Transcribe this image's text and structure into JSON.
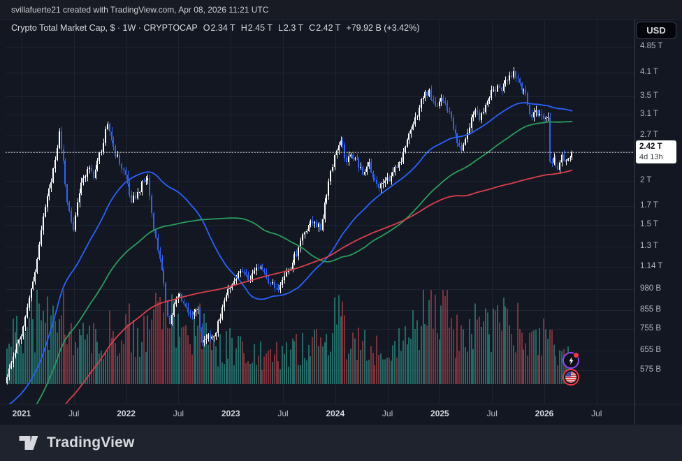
{
  "top_bar": {
    "attribution": "svillafuerte21 created with TradingView.com, Apr 08, 2026 11:21 UTC"
  },
  "header": {
    "title": "Crypto Total Market Cap, $ · 1W · CRYPTOCAP",
    "o_label": "O",
    "o": "2.34 T",
    "h_label": "H",
    "h": "2.45 T",
    "l_label": "L",
    "l": "2.3 T",
    "c_label": "C",
    "c": "2.42 T",
    "change": "+79.92 B (+3.42%)"
  },
  "price_axis": {
    "currency": "USD",
    "labels": [
      {
        "text": "4.85 T",
        "value": 4.85
      },
      {
        "text": "4.1 T",
        "value": 4.1
      },
      {
        "text": "3.5 T",
        "value": 3.5
      },
      {
        "text": "3.1 T",
        "value": 3.1
      },
      {
        "text": "2.7 T",
        "value": 2.7
      },
      {
        "text": "2 T",
        "value": 2.0
      },
      {
        "text": "1.7 T",
        "value": 1.7
      },
      {
        "text": "1.5 T",
        "value": 1.5
      },
      {
        "text": "1.3 T",
        "value": 1.3
      },
      {
        "text": "1.14 T",
        "value": 1.14
      },
      {
        "text": "980 B",
        "value": 0.98
      },
      {
        "text": "855 B",
        "value": 0.855
      },
      {
        "text": "755 B",
        "value": 0.755
      },
      {
        "text": "655 B",
        "value": 0.655
      },
      {
        "text": "575 B",
        "value": 0.575
      }
    ],
    "tag": {
      "price": "2.42 T",
      "countdown": "4d 13h"
    }
  },
  "time_axis": {
    "labels": [
      {
        "text": "2021",
        "major": true
      },
      {
        "text": "Jul",
        "major": false
      },
      {
        "text": "2022",
        "major": true
      },
      {
        "text": "Jul",
        "major": false
      },
      {
        "text": "2023",
        "major": true
      },
      {
        "text": "Jul",
        "major": false
      },
      {
        "text": "2024",
        "major": true
      },
      {
        "text": "Jul",
        "major": false
      },
      {
        "text": "2025",
        "major": true
      },
      {
        "text": "Jul",
        "major": false
      },
      {
        "text": "2026",
        "major": true
      },
      {
        "text": "Jul",
        "major": false
      }
    ]
  },
  "footer": {
    "brand": "TradingView"
  },
  "floating_buttons": {
    "lightning": "lightning-stream-button",
    "flag": "us-flag-button"
  },
  "chart_data": {
    "type": "candlestick",
    "title": "Crypto Total Market Cap",
    "symbol": "CRYPTOCAP",
    "timeframe": "1W",
    "y_scale": "log",
    "ylim_trillions": [
      0.46,
      5.4
    ],
    "grid": true,
    "price_line_value": 2.42,
    "last_bar": {
      "o": 2.34,
      "h": 2.45,
      "l": 2.3,
      "c": 2.42
    },
    "weeks_total": 282,
    "close_anchors_trillions": [
      [
        0,
        0.55
      ],
      [
        3,
        0.63
      ],
      [
        7,
        0.72
      ],
      [
        10,
        0.87
      ],
      [
        14,
        1.1
      ],
      [
        17,
        1.45
      ],
      [
        21,
        1.91
      ],
      [
        24,
        2.3
      ],
      [
        26,
        2.78
      ],
      [
        28,
        2.29
      ],
      [
        30,
        1.74
      ],
      [
        33,
        1.45
      ],
      [
        35,
        1.74
      ],
      [
        38,
        2.04
      ],
      [
        41,
        2.19
      ],
      [
        43,
        2.04
      ],
      [
        45,
        2.29
      ],
      [
        48,
        2.57
      ],
      [
        50,
        2.92
      ],
      [
        53,
        2.51
      ],
      [
        56,
        2.24
      ],
      [
        59,
        2.09
      ],
      [
        62,
        1.74
      ],
      [
        65,
        1.86
      ],
      [
        68,
        2.0
      ],
      [
        70,
        2.04
      ],
      [
        73,
        1.45
      ],
      [
        76,
        1.2
      ],
      [
        79,
        0.91
      ],
      [
        81,
        0.78
      ],
      [
        83,
        0.89
      ],
      [
        86,
        0.95
      ],
      [
        89,
        0.87
      ],
      [
        92,
        0.83
      ],
      [
        95,
        0.86
      ],
      [
        97,
        0.69
      ],
      [
        100,
        0.73
      ],
      [
        103,
        0.72
      ],
      [
        106,
        0.81
      ],
      [
        108,
        0.91
      ],
      [
        111,
        0.99
      ],
      [
        114,
        1.05
      ],
      [
        117,
        1.1
      ],
      [
        120,
        1.04
      ],
      [
        122,
        1.09
      ],
      [
        125,
        1.13
      ],
      [
        128,
        1.1
      ],
      [
        131,
        1.02
      ],
      [
        133,
        0.99
      ],
      [
        136,
        1.01
      ],
      [
        139,
        1.1
      ],
      [
        142,
        1.17
      ],
      [
        145,
        1.29
      ],
      [
        147,
        1.41
      ],
      [
        150,
        1.5
      ],
      [
        153,
        1.53
      ],
      [
        156,
        1.45
      ],
      [
        158,
        1.74
      ],
      [
        161,
        2.14
      ],
      [
        164,
        2.45
      ],
      [
        166,
        2.61
      ],
      [
        169,
        2.27
      ],
      [
        171,
        2.38
      ],
      [
        174,
        2.31
      ],
      [
        177,
        2.09
      ],
      [
        180,
        2.27
      ],
      [
        182,
        2.04
      ],
      [
        185,
        1.91
      ],
      [
        188,
        2.01
      ],
      [
        191,
        2.07
      ],
      [
        194,
        2.19
      ],
      [
        196,
        2.27
      ],
      [
        199,
        2.63
      ],
      [
        202,
        2.91
      ],
      [
        205,
        3.24
      ],
      [
        207,
        3.47
      ],
      [
        210,
        3.66
      ],
      [
        212,
        3.39
      ],
      [
        214,
        3.28
      ],
      [
        216,
        3.47
      ],
      [
        218,
        3.35
      ],
      [
        220,
        3.16
      ],
      [
        222,
        2.82
      ],
      [
        224,
        2.57
      ],
      [
        226,
        2.45
      ],
      [
        229,
        2.75
      ],
      [
        231,
        3.05
      ],
      [
        233,
        3.19
      ],
      [
        235,
        2.99
      ],
      [
        238,
        3.31
      ],
      [
        240,
        3.47
      ],
      [
        242,
        3.66
      ],
      [
        244,
        3.76
      ],
      [
        246,
        3.63
      ],
      [
        248,
        3.89
      ],
      [
        250,
        4.02
      ],
      [
        252,
        4.13
      ],
      [
        254,
        3.94
      ],
      [
        257,
        3.66
      ],
      [
        259,
        3.31
      ],
      [
        261,
        3.05
      ],
      [
        263,
        3.19
      ],
      [
        265,
        3.12
      ],
      [
        267,
        3.02
      ],
      [
        269,
        3.05
      ],
      [
        270,
        2.27
      ],
      [
        272,
        2.34
      ],
      [
        274,
        2.16
      ],
      [
        276,
        2.38
      ],
      [
        278,
        2.29
      ],
      [
        280,
        2.34
      ],
      [
        281,
        2.42
      ]
    ],
    "prehistory": {
      "start_value": 0.55,
      "log_decay_per_week": 0.0035,
      "weeks": 210
    },
    "moving_averages": [
      {
        "name": "SMA 50",
        "period": 50,
        "color": "#2962ff"
      },
      {
        "name": "SMA 100",
        "period": 100,
        "color": "#2a9d5c"
      },
      {
        "name": "SMA 200",
        "period": 200,
        "color": "#d9404b"
      }
    ],
    "volume_profile_anchors": [
      [
        0,
        0.55
      ],
      [
        8,
        0.8
      ],
      [
        16,
        1.0
      ],
      [
        24,
        0.85
      ],
      [
        26,
        1.05
      ],
      [
        32,
        0.7
      ],
      [
        40,
        0.6
      ],
      [
        48,
        0.65
      ],
      [
        52,
        0.75
      ],
      [
        60,
        0.85
      ],
      [
        66,
        0.6
      ],
      [
        73,
        0.95
      ],
      [
        80,
        1.05
      ],
      [
        88,
        0.6
      ],
      [
        97,
        0.85
      ],
      [
        104,
        0.5
      ],
      [
        111,
        0.55
      ],
      [
        120,
        0.45
      ],
      [
        130,
        0.4
      ],
      [
        140,
        0.45
      ],
      [
        150,
        0.55
      ],
      [
        160,
        0.8
      ],
      [
        166,
        0.9
      ],
      [
        172,
        0.6
      ],
      [
        180,
        0.55
      ],
      [
        188,
        0.5
      ],
      [
        196,
        0.6
      ],
      [
        205,
        0.9
      ],
      [
        210,
        1.25
      ],
      [
        212,
        0.8
      ],
      [
        218,
        1.3
      ],
      [
        222,
        0.8
      ],
      [
        226,
        0.7
      ],
      [
        230,
        0.75
      ],
      [
        234,
        0.85
      ],
      [
        238,
        0.8
      ],
      [
        242,
        0.85
      ],
      [
        246,
        0.9
      ],
      [
        250,
        0.85
      ],
      [
        254,
        0.8
      ],
      [
        258,
        0.7
      ],
      [
        262,
        0.6
      ],
      [
        266,
        0.55
      ],
      [
        270,
        0.9
      ],
      [
        274,
        0.45
      ],
      [
        278,
        0.4
      ],
      [
        281,
        0.35
      ]
    ],
    "colors": {
      "bg": "#131722",
      "grid": "#1f2433",
      "up": "#ffffff",
      "down": "#2962ff",
      "vol_up": "rgba(42,158,143,0.62)",
      "vol_down": "rgba(226,72,82,0.52)",
      "price_line": "#e8e9ec",
      "axis_border": "#3a3f4c",
      "left_mask": "#14171f"
    }
  }
}
